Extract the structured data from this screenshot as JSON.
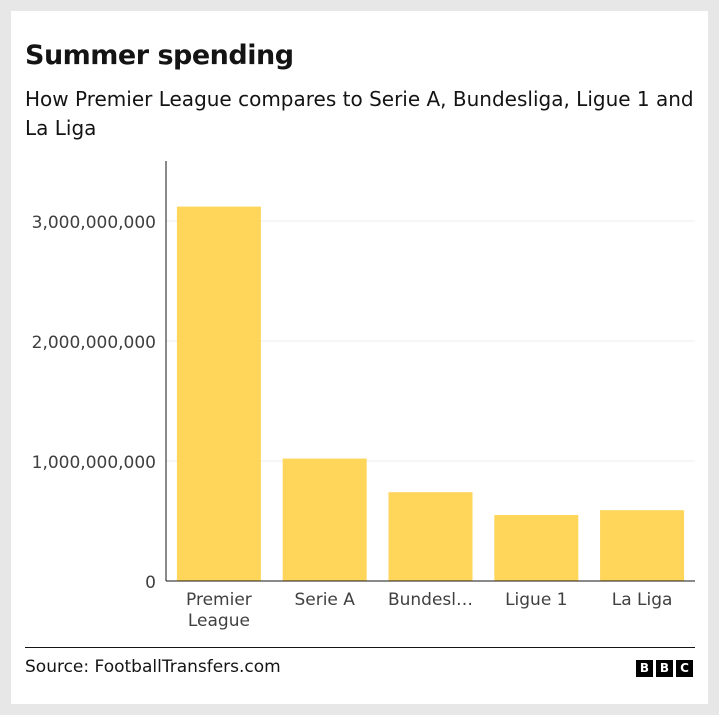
{
  "title": "Summer spending",
  "subtitle": "How Premier League compares to Serie A, Bundesliga, Ligue 1 and La Liga",
  "source": "Source: FootballTransfers.com",
  "logo": [
    "B",
    "B",
    "C"
  ],
  "colors": {
    "bar": "#ffd65a",
    "grid": "#ececec",
    "axis": "#141414",
    "tick_text": "#404040"
  },
  "chart_data": {
    "type": "bar",
    "categories": [
      "Premier League",
      "Serie A",
      "Bundesl…",
      "Ligue 1",
      "La Liga"
    ],
    "category_labels": [
      [
        "Premier",
        "League"
      ],
      [
        "Serie A"
      ],
      [
        "Bundesl…"
      ],
      [
        "Ligue 1"
      ],
      [
        "La Liga"
      ]
    ],
    "values": [
      3120000000,
      1020000000,
      740000000,
      550000000,
      590000000
    ],
    "title": "Summer spending",
    "subtitle": "How Premier League compares to Serie A, Bundesliga, Ligue 1 and La Liga",
    "xlabel": "",
    "ylabel": "",
    "ylim": [
      0,
      3500000000
    ],
    "yticks": [
      0,
      1000000000,
      2000000000,
      3000000000
    ],
    "ytick_labels": [
      "0",
      "1,000,000,000",
      "2,000,000,000",
      "3,000,000,000"
    ],
    "grid": true,
    "legend": "none"
  }
}
